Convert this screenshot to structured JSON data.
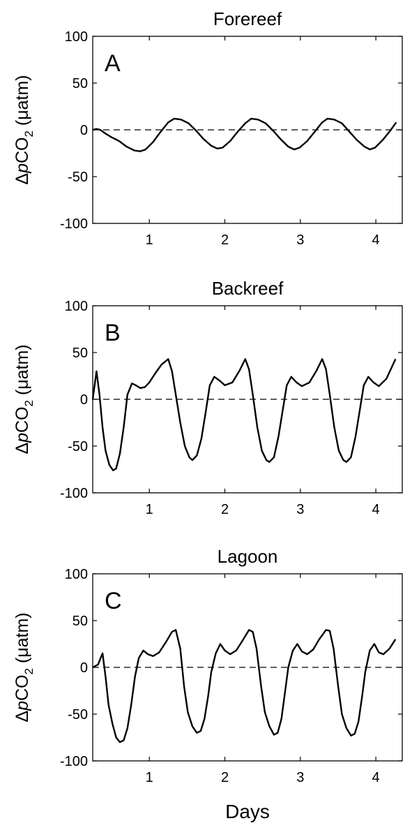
{
  "xlabel": "Days",
  "chart_data": [
    {
      "type": "line",
      "title": "Forereef",
      "panel_label": "A",
      "ylabel_prefix": "Δ",
      "ylabel_italic": "p",
      "ylabel_main": "CO",
      "ylabel_sub": "2",
      "ylabel_suffix": " (μatm)",
      "xlim": [
        0.25,
        4.35
      ],
      "ylim": [
        -100,
        100
      ],
      "xticks": [
        1,
        2,
        3,
        4
      ],
      "yticks": [
        -100,
        -50,
        0,
        50,
        100
      ],
      "reference_line": 0,
      "series": [
        {
          "x": [
            0.25,
            0.3,
            0.35,
            0.42,
            0.5,
            0.6,
            0.7,
            0.8,
            0.88,
            0.95,
            1.05,
            1.15,
            1.25,
            1.33,
            1.42,
            1.52,
            1.62,
            1.72,
            1.82,
            1.9,
            1.97,
            2.07,
            2.17,
            2.27,
            2.35,
            2.44,
            2.54,
            2.64,
            2.74,
            2.84,
            2.92,
            2.99,
            3.09,
            3.19,
            3.29,
            3.36,
            3.45,
            3.55,
            3.65,
            3.75,
            3.85,
            3.92,
            3.99,
            4.09,
            4.19,
            4.27
          ],
          "y": [
            0,
            1,
            0,
            -4,
            -8,
            -12,
            -18,
            -22,
            -23,
            -21,
            -13,
            -2,
            8,
            12,
            11,
            7,
            -1,
            -10,
            -17,
            -20,
            -19,
            -12,
            -2,
            7,
            12,
            11,
            7,
            -1,
            -10,
            -18,
            -21,
            -19,
            -12,
            -2,
            8,
            12,
            11,
            7,
            -2,
            -11,
            -18,
            -21,
            -19,
            -11,
            -1,
            8
          ]
        }
      ]
    },
    {
      "type": "line",
      "title": "Backreef",
      "panel_label": "B",
      "ylabel_prefix": "Δ",
      "ylabel_italic": "p",
      "ylabel_main": "CO",
      "ylabel_sub": "2",
      "ylabel_suffix": " (μatm)",
      "xlim": [
        0.25,
        4.35
      ],
      "ylim": [
        -100,
        100
      ],
      "xticks": [
        1,
        2,
        3,
        4
      ],
      "yticks": [
        -100,
        -50,
        0,
        50,
        100
      ],
      "reference_line": 0,
      "series": [
        {
          "x": [
            0.25,
            0.3,
            0.34,
            0.38,
            0.42,
            0.47,
            0.52,
            0.56,
            0.61,
            0.66,
            0.71,
            0.77,
            0.82,
            0.88,
            0.94,
            1.0,
            1.08,
            1.16,
            1.25,
            1.3,
            1.35,
            1.41,
            1.47,
            1.53,
            1.57,
            1.63,
            1.69,
            1.75,
            1.8,
            1.86,
            1.93,
            2.0,
            2.1,
            2.19,
            2.27,
            2.32,
            2.37,
            2.43,
            2.49,
            2.55,
            2.59,
            2.65,
            2.71,
            2.77,
            2.82,
            2.88,
            2.95,
            3.02,
            3.12,
            3.21,
            3.29,
            3.34,
            3.39,
            3.45,
            3.51,
            3.57,
            3.61,
            3.67,
            3.73,
            3.79,
            3.84,
            3.9,
            3.97,
            4.04,
            4.14,
            4.26
          ],
          "y": [
            0,
            30,
            5,
            -30,
            -55,
            -70,
            -76,
            -74,
            -58,
            -30,
            5,
            17,
            15,
            12,
            13,
            18,
            28,
            37,
            43,
            30,
            5,
            -25,
            -50,
            -62,
            -65,
            -60,
            -42,
            -12,
            15,
            24,
            20,
            15,
            18,
            30,
            43,
            32,
            5,
            -30,
            -55,
            -65,
            -67,
            -62,
            -40,
            -10,
            15,
            24,
            18,
            14,
            18,
            30,
            43,
            32,
            5,
            -30,
            -55,
            -65,
            -67,
            -62,
            -40,
            -10,
            15,
            24,
            18,
            14,
            22,
            43
          ]
        }
      ]
    },
    {
      "type": "line",
      "title": "Lagoon",
      "panel_label": "C",
      "ylabel_prefix": "Δ",
      "ylabel_italic": "p",
      "ylabel_main": "CO",
      "ylabel_sub": "2",
      "ylabel_suffix": " (μatm)",
      "xlim": [
        0.25,
        4.35
      ],
      "ylim": [
        -100,
        100
      ],
      "xticks": [
        1,
        2,
        3,
        4
      ],
      "yticks": [
        -100,
        -50,
        0,
        50,
        100
      ],
      "reference_line": 0,
      "series": [
        {
          "x": [
            0.25,
            0.32,
            0.38,
            0.42,
            0.46,
            0.51,
            0.56,
            0.61,
            0.66,
            0.71,
            0.76,
            0.81,
            0.86,
            0.92,
            0.98,
            1.05,
            1.13,
            1.22,
            1.3,
            1.35,
            1.41,
            1.46,
            1.51,
            1.57,
            1.63,
            1.68,
            1.73,
            1.78,
            1.82,
            1.88,
            1.94,
            2.0,
            2.07,
            2.15,
            2.23,
            2.32,
            2.37,
            2.42,
            2.48,
            2.53,
            2.59,
            2.65,
            2.7,
            2.75,
            2.8,
            2.84,
            2.9,
            2.96,
            3.02,
            3.09,
            3.17,
            3.25,
            3.34,
            3.39,
            3.44,
            3.5,
            3.55,
            3.61,
            3.67,
            3.72,
            3.77,
            3.82,
            3.86,
            3.92,
            3.98,
            4.04,
            4.1,
            4.18,
            4.26
          ],
          "y": [
            0,
            3,
            15,
            -10,
            -40,
            -60,
            -75,
            -80,
            -78,
            -65,
            -40,
            -10,
            10,
            18,
            14,
            12,
            16,
            27,
            38,
            40,
            20,
            -20,
            -48,
            -63,
            -70,
            -68,
            -55,
            -30,
            -5,
            15,
            25,
            18,
            14,
            18,
            28,
            40,
            38,
            20,
            -20,
            -48,
            -63,
            -72,
            -70,
            -55,
            -25,
            0,
            18,
            25,
            17,
            14,
            19,
            30,
            40,
            39,
            20,
            -20,
            -50,
            -65,
            -73,
            -71,
            -58,
            -30,
            -5,
            18,
            25,
            16,
            14,
            20,
            30
          ]
        }
      ]
    }
  ]
}
